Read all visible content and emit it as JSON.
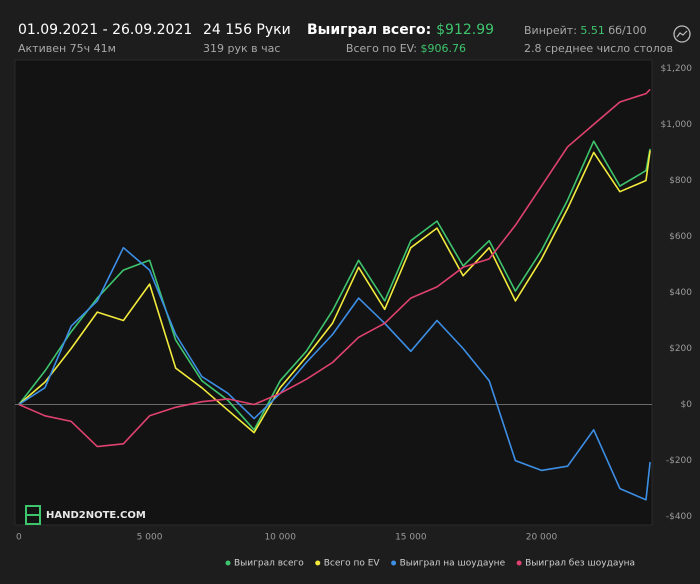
{
  "header": {
    "date_range": "01.09.2021 - 26.09.2021",
    "active": "Активен 75ч 41м",
    "hands": "24 156 Руки",
    "hands_per_hour": "319 рук в час",
    "won_label": "Выиграл всего:",
    "won_value": "$912.99",
    "ev_label": "Всего по EV:",
    "ev_value": "$906.76",
    "winrate_label": "Винрейт:",
    "winrate_value": "5.51",
    "winrate_unit": "бб/100",
    "tables": "2.8 среднее число столов",
    "logo": "HAND2NOTE.COM"
  },
  "chart_data": {
    "type": "line",
    "x": [
      0,
      1000,
      2000,
      3000,
      4000,
      5000,
      6000,
      7000,
      8000,
      9000,
      10000,
      11000,
      12000,
      13000,
      14000,
      15000,
      16000,
      17000,
      18000,
      19000,
      20000,
      21000,
      22000,
      23000,
      24000,
      24156
    ],
    "series": [
      {
        "name": "Выиграл всего",
        "color": "#3ec46d",
        "values": [
          0,
          120,
          260,
          380,
          480,
          515,
          230,
          85,
          15,
          -90,
          85,
          190,
          335,
          515,
          370,
          585,
          655,
          495,
          585,
          405,
          550,
          730,
          940,
          780,
          835,
          912.99
        ]
      },
      {
        "name": "Всего по EV",
        "color": "#f2ea3c",
        "values": [
          0,
          80,
          200,
          330,
          300,
          430,
          130,
          60,
          -20,
          -100,
          60,
          170,
          290,
          490,
          340,
          560,
          630,
          460,
          560,
          370,
          520,
          700,
          900,
          760,
          800,
          906.76
        ]
      },
      {
        "name": "Выиграл на шоудауне",
        "color": "#3d8fe6",
        "values": [
          0,
          60,
          280,
          370,
          560,
          480,
          250,
          100,
          40,
          -50,
          40,
          150,
          250,
          380,
          290,
          190,
          300,
          200,
          85,
          -200,
          -235,
          -220,
          -90,
          -300,
          -340,
          -205
        ]
      },
      {
        "name": "Выиграл без шоудауна",
        "color": "#e0426f",
        "values": [
          0,
          -40,
          -60,
          -150,
          -140,
          -40,
          -10,
          10,
          20,
          0,
          40,
          90,
          150,
          240,
          290,
          380,
          420,
          490,
          520,
          640,
          780,
          920,
          1000,
          1080,
          1110,
          1125
        ]
      }
    ],
    "xlim": [
      -150,
      24230
    ],
    "ylim": [
      -430,
      1230
    ],
    "xticks": [
      0,
      {
        "value": 5000,
        "label": "5 000"
      },
      {
        "value": 10000,
        "label": "10 000"
      },
      {
        "value": 15000,
        "label": "15 000"
      },
      {
        "value": 20000,
        "label": "20 000"
      }
    ],
    "yticks": [
      {
        "value": 1200,
        "label": "$1,200"
      },
      {
        "value": 1000,
        "label": "$1,000"
      },
      {
        "value": 800,
        "label": "$800"
      },
      {
        "value": 600,
        "label": "$600"
      },
      {
        "value": 400,
        "label": "$400"
      },
      {
        "value": 200,
        "label": "$200"
      },
      {
        "value": 0,
        "label": "$0"
      },
      {
        "value": -200,
        "label": "-$200"
      },
      {
        "value": -400,
        "label": "-$400"
      }
    ],
    "zero_line": true,
    "legend": "bottom"
  }
}
